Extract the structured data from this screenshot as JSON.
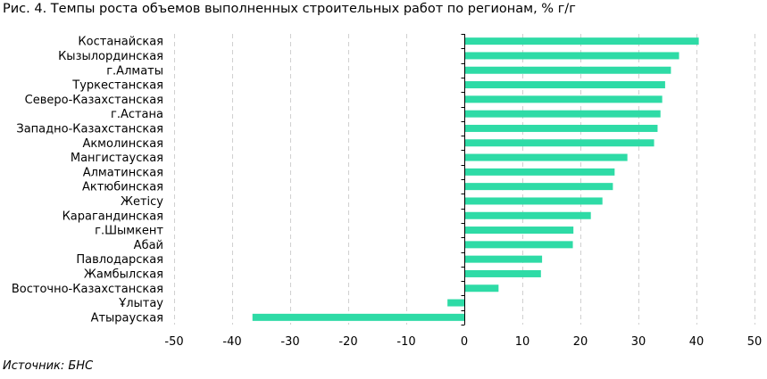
{
  "title": "Рис. 4. Темпы роста объемов выполненных строительных работ по регионам, % г/г",
  "source": "Источник: БНС",
  "colors": {
    "bar": "#2EDBA6",
    "grid": "#D0D0D0",
    "axis": "#000000"
  },
  "chart_data": {
    "type": "bar",
    "orientation": "horizontal",
    "categories": [
      "Костанайская",
      "Кызылординская",
      "г.Алматы",
      "Туркестанская",
      "Северо-Казахстанская",
      "г.Астана",
      "Западно-Казахстанская",
      "Акмолинская",
      "Мангистауская",
      "Алматинская",
      "Актюбинская",
      "Жетісу",
      "Карагандинская",
      "г.Шымкент",
      "Абай",
      "Павлодарская",
      "Жамбылская",
      "Восточно-Казахстанская",
      "Ұлытау",
      "Атырауская"
    ],
    "values": [
      40.4,
      37.0,
      35.6,
      34.6,
      34.1,
      33.8,
      33.3,
      32.7,
      28.1,
      25.9,
      25.6,
      23.8,
      21.8,
      18.8,
      18.7,
      13.4,
      13.2,
      5.9,
      -2.9,
      -36.5
    ],
    "xlim": [
      -50,
      50
    ],
    "xticks": [
      -50,
      -40,
      -30,
      -20,
      -10,
      0,
      10,
      20,
      30,
      40,
      50
    ],
    "xticks_labels": [
      "-50",
      "-40",
      "-30",
      "-20",
      "-10",
      "0",
      "10",
      "20",
      "30",
      "40",
      "50"
    ],
    "grid": "vertical dashed",
    "legend": "none"
  }
}
